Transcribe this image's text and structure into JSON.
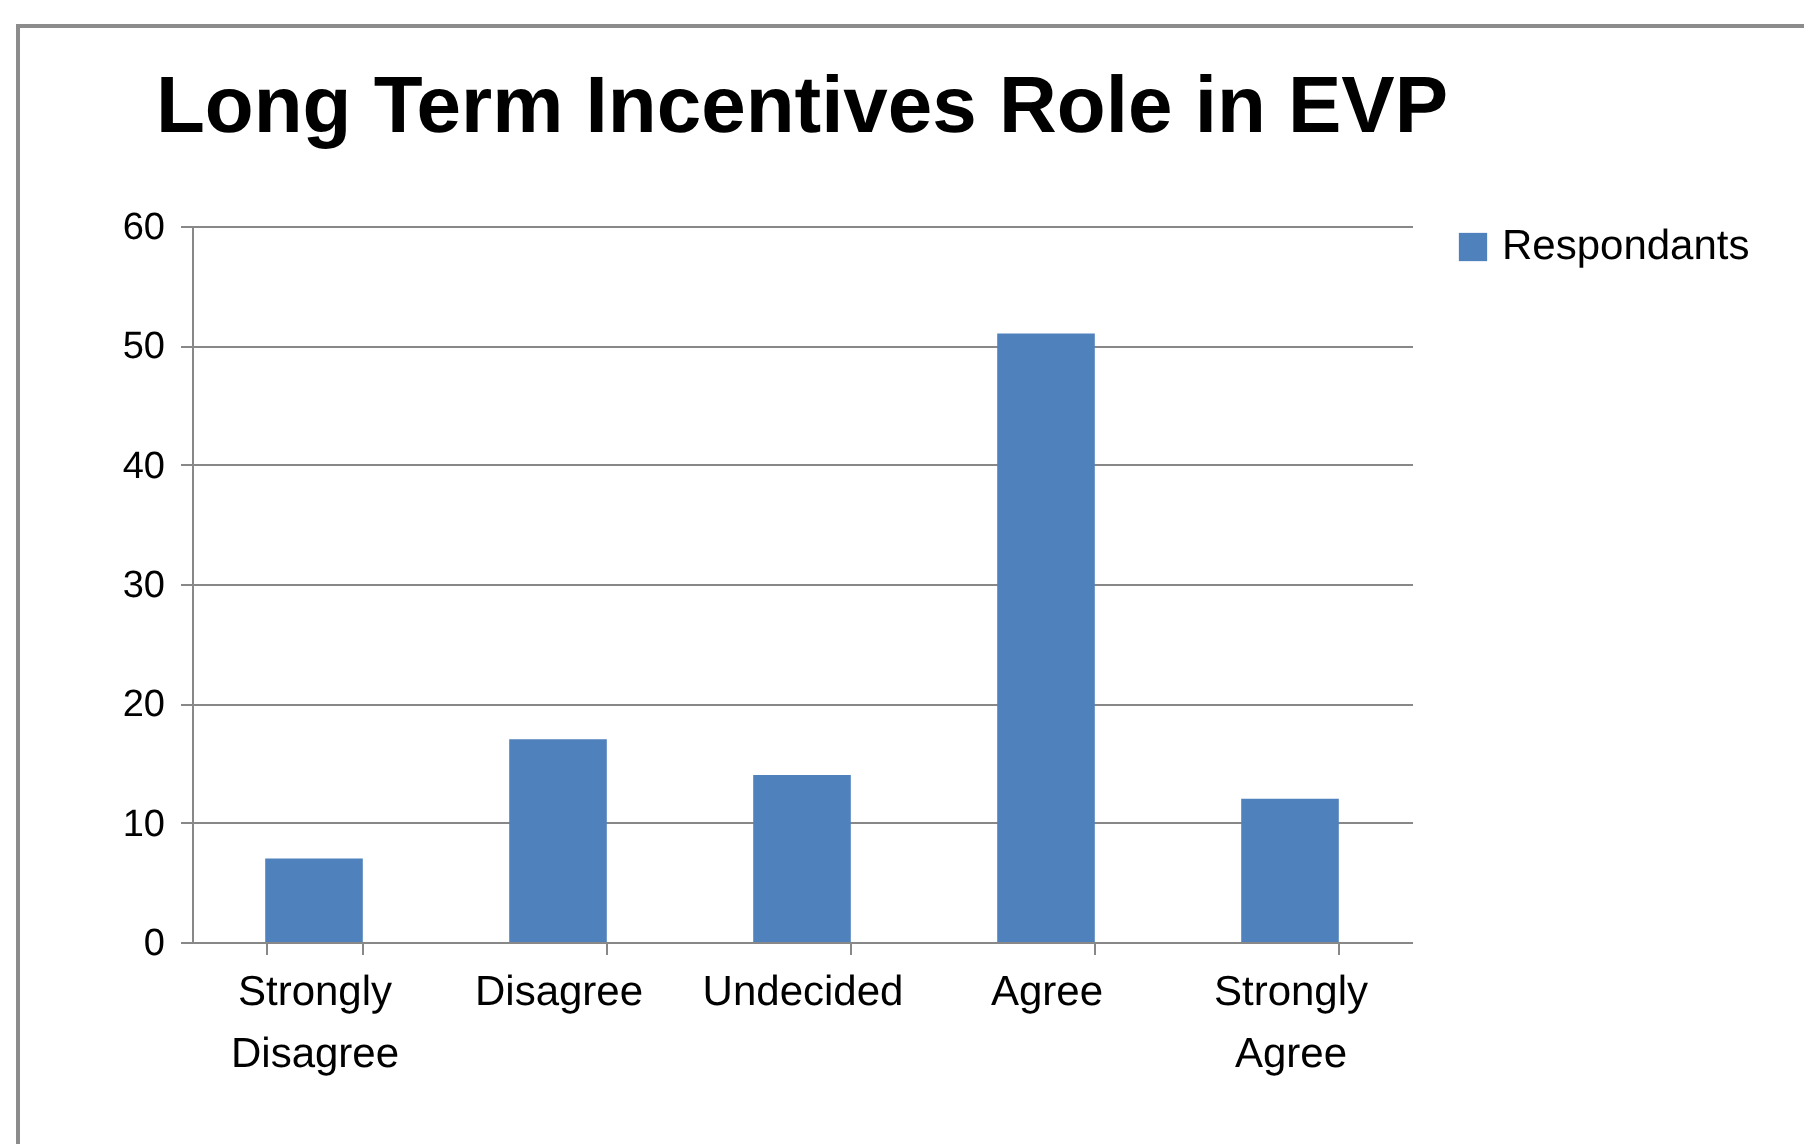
{
  "chart_data": {
    "type": "bar",
    "title": "Long Term Incentives Role in EVP",
    "categories": [
      "Strongly Disagree",
      "Disagree",
      "Undecided",
      "Agree",
      "Strongly Agree"
    ],
    "series": [
      {
        "name": "Respondants",
        "color": "#4f81bd",
        "values": [
          7,
          17,
          14,
          51,
          12
        ]
      }
    ],
    "ylim": [
      0,
      60
    ],
    "yticks": [
      0,
      10,
      20,
      30,
      40,
      50,
      60
    ],
    "grid": "y",
    "legend": "right"
  }
}
